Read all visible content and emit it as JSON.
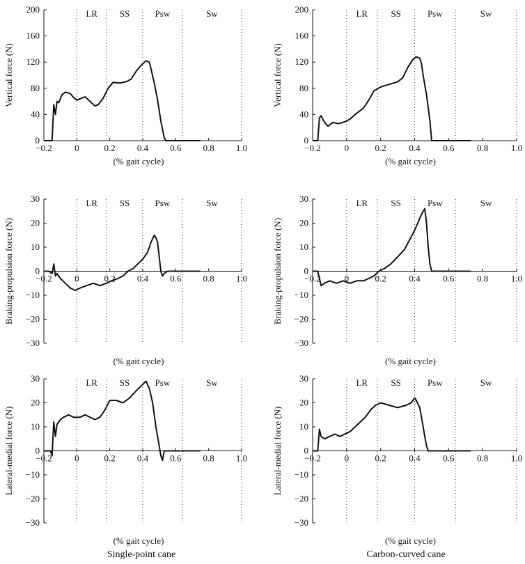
{
  "caption_left": "Single-point cane",
  "caption_right": "Carbon-curved cane",
  "chart_data": [
    {
      "type": "line",
      "name": "vertical-single",
      "ylabel": "Vertical force (N)",
      "xlabel": "(% gait cycle)",
      "ylim": [
        0,
        200
      ],
      "xlim": [
        -0.2,
        1.0
      ],
      "yticks": [
        0,
        40,
        80,
        120,
        160,
        200
      ],
      "xtick_labels": [
        "−0.2",
        "0",
        "0.2",
        "0.4",
        "0.6",
        "0.8",
        "1.0"
      ],
      "phases": [
        "LR",
        "SS",
        "Psw",
        "Sw"
      ],
      "x": [
        -0.2,
        -0.16,
        -0.15,
        -0.14,
        -0.13,
        -0.12,
        -0.11,
        -0.09,
        -0.07,
        -0.04,
        -0.02,
        0,
        0.02,
        0.05,
        0.08,
        0.11,
        0.13,
        0.16,
        0.19,
        0.22,
        0.26,
        0.3,
        0.33,
        0.36,
        0.39,
        0.42,
        0.44,
        0.45,
        0.47,
        0.49,
        0.51,
        0.53,
        0.54,
        0.6,
        0.75
      ],
      "values": [
        0,
        0,
        0,
        55,
        40,
        60,
        58,
        70,
        74,
        72,
        66,
        62,
        64,
        67,
        60,
        53,
        55,
        65,
        80,
        89,
        88,
        90,
        94,
        106,
        115,
        122,
        120,
        110,
        88,
        62,
        30,
        5,
        0,
        0,
        0
      ]
    },
    {
      "type": "line",
      "name": "vertical-carbon",
      "ylabel": "Vertical force (N)",
      "xlabel": "(% gait cycle)",
      "ylim": [
        0,
        200
      ],
      "xlim": [
        -0.2,
        1.0
      ],
      "yticks": [
        0,
        40,
        80,
        120,
        160,
        200
      ],
      "xtick_labels": [
        "−0.2",
        "0",
        "0.2",
        "0.4",
        "0.6",
        "0.8",
        "1.0"
      ],
      "phases": [
        "LR",
        "SS",
        "Psw",
        "Sw"
      ],
      "x": [
        -0.2,
        -0.17,
        -0.16,
        -0.15,
        -0.13,
        -0.11,
        -0.08,
        -0.05,
        -0.02,
        0,
        0.02,
        0.05,
        0.08,
        0.1,
        0.13,
        0.16,
        0.2,
        0.25,
        0.3,
        0.33,
        0.36,
        0.39,
        0.41,
        0.43,
        0.44,
        0.45,
        0.46,
        0.47,
        0.48,
        0.49,
        0.5,
        0.55,
        0.73
      ],
      "values": [
        0,
        0,
        35,
        38,
        28,
        22,
        28,
        26,
        28,
        30,
        33,
        40,
        46,
        50,
        62,
        76,
        82,
        86,
        90,
        96,
        112,
        124,
        128,
        126,
        118,
        100,
        85,
        70,
        50,
        30,
        0,
        0,
        0
      ]
    },
    {
      "type": "line",
      "name": "braking-single",
      "ylabel": "Braking-propulsion force (N)",
      "xlabel": "(% gait cycle)",
      "ylim": [
        -30,
        30
      ],
      "xlim": [
        -0.2,
        1.0
      ],
      "yticks": [
        -30,
        -20,
        -10,
        0,
        10,
        20,
        30
      ],
      "xtick_labels": [
        "−0.2",
        "0",
        "0.2",
        "0.4",
        "0.6",
        "0.8",
        "1.0"
      ],
      "phases": [
        "LR",
        "SS",
        "Psw",
        "Sw"
      ],
      "x": [
        -0.2,
        -0.17,
        -0.15,
        -0.14,
        -0.13,
        -0.12,
        -0.1,
        -0.07,
        -0.04,
        -0.01,
        0.02,
        0.06,
        0.1,
        0.14,
        0.18,
        0.21,
        0.25,
        0.28,
        0.31,
        0.34,
        0.37,
        0.4,
        0.43,
        0.45,
        0.47,
        0.48,
        0.49,
        0.5,
        0.51,
        0.52,
        0.53,
        0.55,
        0.6,
        0.75
      ],
      "values": [
        0,
        0,
        -1,
        3,
        -2,
        -1,
        -3,
        -5,
        -7,
        -8,
        -7,
        -6,
        -5,
        -6,
        -5,
        -4,
        -3,
        -2,
        0,
        1,
        3,
        5,
        8,
        12,
        15,
        14,
        12,
        6,
        0,
        -2,
        -1,
        0,
        0,
        0
      ]
    },
    {
      "type": "line",
      "name": "braking-carbon",
      "ylabel": "Braking-propulsion force (N)",
      "xlabel": "(% gait cycle)",
      "ylim": [
        -30,
        30
      ],
      "xlim": [
        -0.2,
        1.0
      ],
      "yticks": [
        -30,
        -20,
        -10,
        0,
        10,
        20,
        30
      ],
      "xtick_labels": [
        "−0.2",
        "0",
        "0.2",
        "0.4",
        "0.6",
        "0.8",
        "1.0"
      ],
      "phases": [
        "LR",
        "SS",
        "Psw",
        "Sw"
      ],
      "x": [
        -0.2,
        -0.17,
        -0.16,
        -0.15,
        -0.13,
        -0.1,
        -0.06,
        -0.02,
        0.02,
        0.06,
        0.1,
        0.13,
        0.16,
        0.19,
        0.22,
        0.26,
        0.3,
        0.34,
        0.37,
        0.4,
        0.43,
        0.45,
        0.46,
        0.47,
        0.48,
        0.49,
        0.5,
        0.55,
        0.73
      ],
      "values": [
        0,
        0,
        -3,
        -6,
        -5,
        -4,
        -5,
        -4,
        -5,
        -4,
        -4,
        -3,
        -2,
        0,
        1,
        3,
        6,
        9,
        13,
        17,
        22,
        25,
        26,
        20,
        10,
        3,
        0,
        0,
        0
      ]
    },
    {
      "type": "line",
      "name": "lateral-single",
      "ylabel": "Lateral-medial force (N)",
      "xlabel": "(% gait cycle)",
      "ylim": [
        -30,
        30
      ],
      "xlim": [
        -0.2,
        1.0
      ],
      "yticks": [
        -30,
        -20,
        -10,
        0,
        10,
        20,
        30
      ],
      "xtick_labels": [
        "−0.2",
        "0",
        "0.2",
        "0.4",
        "0.6",
        "0.8",
        "1.0"
      ],
      "phases": [
        "LR",
        "SS",
        "Psw",
        "Sw"
      ],
      "x": [
        -0.2,
        -0.16,
        -0.15,
        -0.14,
        -0.13,
        -0.12,
        -0.1,
        -0.08,
        -0.05,
        -0.02,
        0.02,
        0.05,
        0.08,
        0.11,
        0.14,
        0.17,
        0.2,
        0.24,
        0.28,
        0.32,
        0.36,
        0.39,
        0.42,
        0.44,
        0.46,
        0.48,
        0.5,
        0.51,
        0.52,
        0.53,
        0.55,
        0.6,
        0.75
      ],
      "values": [
        0,
        0,
        -2,
        12,
        6,
        11,
        13,
        14,
        15,
        14,
        14,
        15,
        14,
        13,
        14,
        17,
        21,
        21,
        20,
        22,
        25,
        27,
        29,
        26,
        20,
        10,
        2,
        -2,
        -4,
        0,
        0,
        0,
        0
      ]
    },
    {
      "type": "line",
      "name": "lateral-carbon",
      "ylabel": "Lateral-medial force (N)",
      "xlabel": "(% gait cycle)",
      "ylim": [
        -30,
        30
      ],
      "xlim": [
        -0.2,
        1.0
      ],
      "yticks": [
        -30,
        -20,
        -10,
        0,
        10,
        20,
        30
      ],
      "xtick_labels": [
        "−0.2",
        "0",
        "0.2",
        "0.4",
        "0.6",
        "0.8",
        "1.0"
      ],
      "phases": [
        "LR",
        "SS",
        "Psw",
        "Sw"
      ],
      "x": [
        -0.2,
        -0.18,
        -0.17,
        -0.16,
        -0.15,
        -0.13,
        -0.1,
        -0.07,
        -0.04,
        -0.01,
        0.02,
        0.05,
        0.08,
        0.11,
        0.14,
        0.17,
        0.2,
        0.25,
        0.3,
        0.35,
        0.38,
        0.4,
        0.41,
        0.43,
        0.44,
        0.45,
        0.46,
        0.47,
        0.48,
        0.49,
        0.5,
        0.55,
        0.73
      ],
      "values": [
        0,
        0,
        0,
        9,
        6,
        5,
        6,
        7,
        6,
        7,
        8,
        10,
        12,
        14,
        17,
        19,
        20,
        19,
        18,
        19,
        20,
        22,
        21,
        18,
        14,
        10,
        6,
        2,
        0,
        0,
        0,
        0,
        0
      ]
    }
  ]
}
